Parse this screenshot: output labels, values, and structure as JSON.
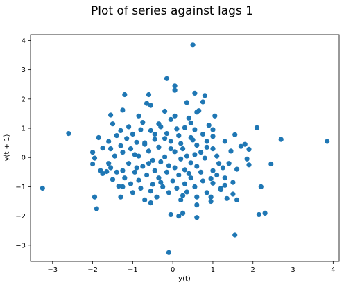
{
  "chart_data": {
    "type": "scatter",
    "title": "Plot of series against lags 1",
    "xlabel": "y(t)",
    "ylabel": "y(t + 1)",
    "xlim": [
      -3.55,
      4.15
    ],
    "ylim": [
      -3.55,
      4.2
    ],
    "xticks": [
      -3,
      -2,
      -1,
      0,
      1,
      2,
      3,
      4
    ],
    "yticks": [
      -3,
      -2,
      -1,
      0,
      1,
      2,
      3,
      4
    ],
    "grid": false,
    "color": "#1f77b4",
    "points": [
      [
        0.5,
        3.85
      ],
      [
        -0.15,
        2.7
      ],
      [
        3.85,
        0.55
      ],
      [
        -3.25,
        -1.05
      ],
      [
        -0.1,
        -3.25
      ],
      [
        1.55,
        -2.65
      ],
      [
        2.7,
        0.62
      ],
      [
        -2.6,
        0.82
      ],
      [
        2.45,
        -0.22
      ],
      [
        2.1,
        1.02
      ],
      [
        2.3,
        -1.9
      ],
      [
        2.15,
        -1.95
      ],
      [
        -1.9,
        -1.75
      ],
      [
        -1.95,
        -1.35
      ],
      [
        2.2,
        -1.0
      ],
      [
        -1.2,
        2.15
      ],
      [
        -0.6,
        2.15
      ],
      [
        0.55,
        2.2
      ],
      [
        0.8,
        2.12
      ],
      [
        0.05,
        2.45
      ],
      [
        0.05,
        2.3
      ],
      [
        0.75,
        1.9
      ],
      [
        0.35,
        1.88
      ],
      [
        -0.65,
        1.85
      ],
      [
        -0.55,
        1.78
      ],
      [
        -1.25,
        1.62
      ],
      [
        -0.2,
        1.58
      ],
      [
        0.6,
        1.55
      ],
      [
        -1.55,
        1.45
      ],
      [
        -0.85,
        1.42
      ],
      [
        0.05,
        1.42
      ],
      [
        1.05,
        1.42
      ],
      [
        -0.05,
        1.3
      ],
      [
        0.45,
        1.18
      ],
      [
        0.9,
        1.1
      ],
      [
        -1.5,
        1.15
      ],
      [
        -1.1,
        1.05
      ],
      [
        -0.3,
        1.05
      ],
      [
        0.3,
        1.02
      ],
      [
        -1.85,
        0.68
      ],
      [
        -1.3,
        0.92
      ],
      [
        -0.8,
        0.95
      ],
      [
        -0.55,
        0.92
      ],
      [
        0.1,
        0.98
      ],
      [
        0.55,
        0.95
      ],
      [
        1.0,
        0.95
      ],
      [
        -1.0,
        0.8
      ],
      [
        -0.15,
        0.82
      ],
      [
        0.75,
        0.8
      ],
      [
        1.55,
        0.78
      ],
      [
        -1.15,
        0.65
      ],
      [
        -0.45,
        0.62
      ],
      [
        0.45,
        0.68
      ],
      [
        1.8,
        0.45
      ],
      [
        -1.6,
        0.55
      ],
      [
        -0.9,
        0.52
      ],
      [
        -0.05,
        0.55
      ],
      [
        0.2,
        0.48
      ],
      [
        0.85,
        0.55
      ],
      [
        1.3,
        0.55
      ],
      [
        -1.3,
        0.4
      ],
      [
        -0.7,
        0.45
      ],
      [
        0.6,
        0.42
      ],
      [
        1.7,
        0.38
      ],
      [
        -1.55,
        0.3
      ],
      [
        -1.05,
        0.3
      ],
      [
        -0.35,
        0.35
      ],
      [
        0.25,
        0.3
      ],
      [
        1.0,
        0.3
      ],
      [
        1.9,
        0.28
      ],
      [
        -2.0,
        0.18
      ],
      [
        -1.25,
        0.18
      ],
      [
        -0.6,
        0.22
      ],
      [
        0.05,
        0.2
      ],
      [
        0.7,
        0.18
      ],
      [
        1.45,
        0.22
      ],
      [
        -1.75,
        0.32
      ],
      [
        -1.45,
        0.05
      ],
      [
        -0.85,
        0.05
      ],
      [
        -0.2,
        0.02
      ],
      [
        0.35,
        0.05
      ],
      [
        1.1,
        0.05
      ],
      [
        -1.95,
        -0.02
      ],
      [
        1.85,
        -0.05
      ],
      [
        -0.5,
        -0.1
      ],
      [
        0.2,
        -0.05
      ],
      [
        0.8,
        -0.02
      ],
      [
        -2.0,
        -0.22
      ],
      [
        -1.1,
        -0.2
      ],
      [
        -0.3,
        -0.15
      ],
      [
        0.45,
        -0.18
      ],
      [
        1.4,
        -0.2
      ],
      [
        1.9,
        -0.25
      ],
      [
        -1.55,
        -0.35
      ],
      [
        -0.75,
        -0.3
      ],
      [
        0.05,
        -0.35
      ],
      [
        0.6,
        -0.3
      ],
      [
        1.25,
        -0.35
      ],
      [
        -1.25,
        -0.45
      ],
      [
        -0.45,
        -0.45
      ],
      [
        0.3,
        -0.42
      ],
      [
        1.0,
        -0.45
      ],
      [
        -1.65,
        -0.48
      ],
      [
        -1.4,
        -0.5
      ],
      [
        -0.95,
        -0.5
      ],
      [
        -0.15,
        -0.5
      ],
      [
        0.7,
        -0.5
      ],
      [
        -1.75,
        -0.55
      ],
      [
        -0.65,
        -0.6
      ],
      [
        0.15,
        -0.6
      ],
      [
        1.1,
        -0.6
      ],
      [
        -1.2,
        -0.7
      ],
      [
        -0.35,
        -0.7
      ],
      [
        0.45,
        -0.7
      ],
      [
        1.3,
        -0.7
      ],
      [
        -1.5,
        -0.75
      ],
      [
        -0.85,
        -0.78
      ],
      [
        0.0,
        -0.8
      ],
      [
        0.75,
        -0.8
      ],
      [
        1.5,
        -0.85
      ],
      [
        -1.05,
        -0.9
      ],
      [
        -0.5,
        -0.92
      ],
      [
        0.3,
        -0.9
      ],
      [
        1.0,
        -0.88
      ],
      [
        -1.35,
        -0.98
      ],
      [
        -0.25,
        -1.0
      ],
      [
        0.55,
        -1.0
      ],
      [
        -0.8,
        -1.05
      ],
      [
        0.1,
        -1.05
      ],
      [
        1.2,
        -1.05
      ],
      [
        -0.55,
        -1.15
      ],
      [
        0.35,
        -1.18
      ],
      [
        -1.0,
        -1.2
      ],
      [
        -0.1,
        -1.2
      ],
      [
        0.85,
        -1.2
      ],
      [
        1.5,
        -1.25
      ],
      [
        -1.3,
        -1.35
      ],
      [
        -0.4,
        -1.35
      ],
      [
        0.6,
        -1.35
      ],
      [
        1.35,
        -1.4
      ],
      [
        -0.7,
        -1.45
      ],
      [
        0.2,
        -1.45
      ],
      [
        1.6,
        -1.45
      ],
      [
        -0.55,
        -1.55
      ],
      [
        0.95,
        -1.5
      ],
      [
        0.6,
        -1.62
      ],
      [
        0.25,
        -1.9
      ],
      [
        -0.05,
        -1.95
      ],
      [
        0.15,
        -2.0
      ],
      [
        0.6,
        -2.05
      ],
      [
        -0.95,
        0.1
      ],
      [
        0.95,
        -0.72
      ],
      [
        -0.1,
        -0.28
      ],
      [
        0.55,
        0.1
      ],
      [
        -1.8,
        -0.45
      ],
      [
        1.6,
        -0.4
      ],
      [
        -0.2,
        0.65
      ],
      [
        0.4,
        1.35
      ],
      [
        -0.75,
        1.2
      ],
      [
        1.2,
        -1.1
      ],
      [
        -1.4,
        0.75
      ],
      [
        0.15,
        0.75
      ],
      [
        1.15,
        -0.2
      ],
      [
        -0.6,
        -0.2
      ],
      [
        0.85,
        0.35
      ],
      [
        -0.3,
        -0.85
      ],
      [
        0.4,
        -0.55
      ],
      [
        -0.9,
        -0.35
      ],
      [
        1.0,
        0.72
      ],
      [
        -1.25,
        -1.0
      ],
      [
        0.65,
        1.6
      ],
      [
        -0.05,
        0.3
      ],
      [
        0.25,
        -1.3
      ],
      [
        -0.45,
        0.8
      ],
      [
        1.3,
        -0.95
      ],
      [
        -1.6,
        -0.2
      ],
      [
        0.95,
        -1.35
      ],
      [
        -0.7,
        0.5
      ],
      [
        0.5,
        0.6
      ],
      [
        -0.35,
        1.15
      ]
    ]
  }
}
